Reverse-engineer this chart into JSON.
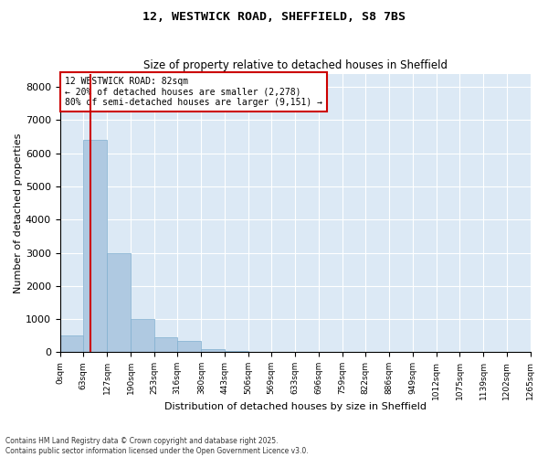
{
  "title_line1": "12, WESTWICK ROAD, SHEFFIELD, S8 7BS",
  "title_line2": "Size of property relative to detached houses in Sheffield",
  "xlabel": "Distribution of detached houses by size in Sheffield",
  "ylabel": "Number of detached properties",
  "bar_values": [
    500,
    6400,
    3000,
    1000,
    450,
    350,
    100,
    50,
    20,
    10,
    5,
    3,
    2,
    1,
    0,
    0,
    0,
    0,
    0,
    0
  ],
  "bin_edges": [
    0,
    63,
    127,
    190,
    253,
    316,
    380,
    443,
    506,
    569,
    633,
    696,
    759,
    822,
    886,
    949,
    1012,
    1075,
    1139,
    1202,
    1265
  ],
  "tick_labels": [
    "0sqm",
    "63sqm",
    "127sqm",
    "190sqm",
    "253sqm",
    "316sqm",
    "380sqm",
    "443sqm",
    "506sqm",
    "569sqm",
    "633sqm",
    "696sqm",
    "759sqm",
    "822sqm",
    "886sqm",
    "949sqm",
    "1012sqm",
    "1075sqm",
    "1139sqm",
    "1202sqm",
    "1265sqm"
  ],
  "bar_color": "#afc9e1",
  "bar_edgecolor": "#7fafd0",
  "property_size": 82,
  "property_line_color": "#cc0000",
  "ylim": [
    0,
    8400
  ],
  "yticks": [
    0,
    1000,
    2000,
    3000,
    4000,
    5000,
    6000,
    7000,
    8000
  ],
  "annotation_title": "12 WESTWICK ROAD: 82sqm",
  "annotation_line1": "← 20% of detached houses are smaller (2,278)",
  "annotation_line2": "80% of semi-detached houses are larger (9,151) →",
  "annotation_box_color": "#cc0000",
  "footer_line1": "Contains HM Land Registry data © Crown copyright and database right 2025.",
  "footer_line2": "Contains public sector information licensed under the Open Government Licence v3.0.",
  "fig_background_color": "#ffffff",
  "axes_background_color": "#dce9f5",
  "grid_color": "#ffffff"
}
